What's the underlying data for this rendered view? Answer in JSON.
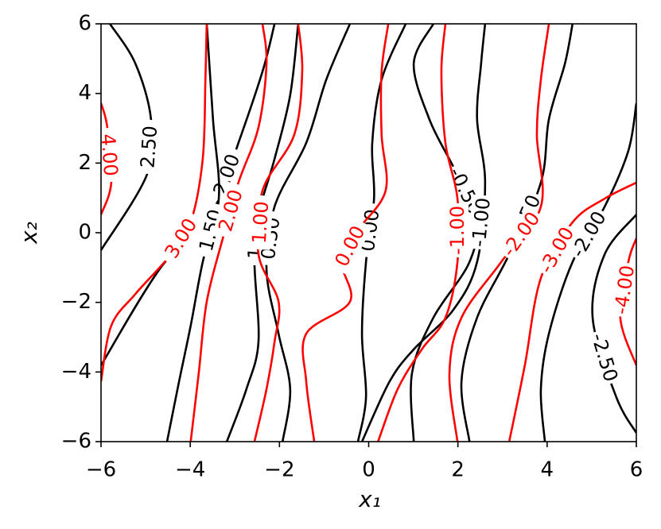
{
  "chart_data": {
    "type": "contour",
    "xlabel": "x₁",
    "ylabel": "x₂",
    "xlim": [
      -6,
      6
    ],
    "ylim": [
      -6,
      6
    ],
    "xticks": [
      {
        "value": -6,
        "label": "−6"
      },
      {
        "value": -4,
        "label": "−4"
      },
      {
        "value": -2,
        "label": "−2"
      },
      0,
      2,
      4,
      6
    ],
    "yticks": [
      {
        "value": -6,
        "label": "−6"
      },
      {
        "value": -4,
        "label": "−4"
      },
      {
        "value": -2,
        "label": "−2"
      },
      0,
      2,
      4,
      6
    ],
    "series": [
      {
        "color": "#000000",
        "contours": [
          {
            "level": 2.5,
            "level_label": "2.50",
            "x": [
              -5.8,
              -5.23,
              -4.88,
              -4.97,
              -6.0
            ],
            "y": [
              6,
              4.86,
              3.26,
              1.67,
              -0.5
            ]
          },
          {
            "level": 2.0,
            "level_label": "2.00",
            "x": [
              -6,
              -4.7,
              -3.45,
              -2.92,
              -2.38,
              -2.11
            ],
            "y": [
              -3.81,
              -1.07,
              0.75,
              2.58,
              4.63,
              6
            ]
          },
          {
            "level": 1.5,
            "level_label": "1.50",
            "x": [
              -4.52,
              -4.25,
              -3.99,
              -3.72,
              -3.36,
              -3.49,
              -3.63
            ],
            "y": [
              -6,
              -4.27,
              -2.67,
              -0.84,
              0.98,
              3.26,
              6
            ]
          },
          {
            "level": 1.0,
            "level_label": "1.00",
            "x": [
              -3.18,
              -2.74,
              -2.47,
              -2.56,
              -2.47,
              -2.11,
              -1.76,
              -1.58
            ],
            "y": [
              -6,
              -4.49,
              -3.13,
              -0.84,
              0.52,
              2.12,
              3.95,
              6
            ]
          },
          {
            "level": 0.5,
            "level_label": "0.50",
            "x": [
              -1.93,
              -1.76,
              -2.02,
              -2.29,
              -2.11,
              -1.4,
              -0.95,
              -0.42
            ],
            "y": [
              -6,
              -4.49,
              -2.9,
              -1.07,
              0.75,
              2.58,
              4.4,
              6
            ]
          },
          {
            "level": 0.0,
            "level_label": "0.00",
            "x": [
              -0.24,
              -0.06,
              -0.15,
              -0.06,
              0.12,
              0.08,
              0.29,
              0.83
            ],
            "y": [
              -6,
              -4.72,
              -2.9,
              -0.84,
              0.98,
              2.58,
              4.4,
              6
            ]
          },
          {
            "level": -0.5,
            "level_label": "-0.50",
            "x": [
              1.01,
              0.97,
              1.45,
              2.26,
              2.43,
              1.9,
              1.36,
              1.01,
              1.45
            ],
            "y": [
              -6,
              -4.04,
              -2.44,
              -0.84,
              0.52,
              1.89,
              3.26,
              4.86,
              6
            ]
          },
          {
            "level": -1.0,
            "level_label": "-1.00",
            "x": [
              -0.15,
              0.47,
              1.01,
              1.9,
              2.43,
              2.61,
              2.43,
              2.52,
              2.61
            ],
            "y": [
              -6,
              -4.27,
              -3.35,
              -2.21,
              -0.84,
              1.44,
              3.26,
              4.86,
              6
            ]
          },
          {
            "level": -1.5,
            "level_label": "-1.50",
            "x": [
              2.26,
              2.08,
              2.43,
              3.15,
              3.86,
              4.04,
              4.4,
              4.57
            ],
            "y": [
              -6,
              -4.27,
              -2.44,
              -0.62,
              1.44,
              3.26,
              4.86,
              6
            ]
          },
          {
            "level": -2.0,
            "level_label": "-2.00",
            "x": [
              3.95,
              3.86,
              4.04,
              4.57,
              5.29,
              5.82,
              6.0
            ],
            "y": [
              -6,
              -4.49,
              -2.9,
              -0.84,
              0.75,
              2.35,
              3.72
            ]
          },
          {
            "level": -2.5,
            "level_label": "-2.50",
            "x": [
              6,
              5.29,
              5.02,
              5.55,
              6
            ],
            "y": [
              0.52,
              -0.62,
              -2.44,
              -4.72,
              -5.75
            ]
          }
        ]
      },
      {
        "color": "#ff0000",
        "contours": [
          {
            "level": 4.0,
            "level_label": "4.00",
            "x": [
              -6,
              -5.77,
              -5.86,
              -6
            ],
            "y": [
              0.52,
              1.44,
              3.03,
              3.72
            ]
          },
          {
            "level": 3.0,
            "level_label": "3.00",
            "x": [
              -6,
              -5.77,
              -5.23,
              -4.43,
              -3.99,
              -3.72,
              -3.66,
              -3.63
            ],
            "y": [
              -4.27,
              -2.67,
              -1.76,
              -0.62,
              0.3,
              2.12,
              4.4,
              6
            ]
          },
          {
            "level": 2.0,
            "level_label": "2.00",
            "x": [
              -3.99,
              -3.81,
              -3.63,
              -3.27,
              -2.92,
              -2.47,
              -2.29,
              -2.38
            ],
            "y": [
              -6,
              -4.04,
              -1.98,
              -0.16,
              1.44,
              3.03,
              4.86,
              6
            ]
          },
          {
            "level": 1.0,
            "level_label": "1.00",
            "x": [
              -2.56,
              -2.29,
              -2.11,
              -2.02,
              -2.47,
              -2.38,
              -1.67,
              -1.49,
              -1.58
            ],
            "y": [
              -6,
              -4.49,
              -3.13,
              -1.98,
              -0.62,
              1.21,
              2.81,
              4.63,
              6
            ]
          },
          {
            "level": 0.0,
            "level_label": "0.00",
            "x": [
              -1.22,
              -1.4,
              -1.4,
              -0.42,
              -0.6,
              -0.24,
              0.38,
              0.29,
              0.29,
              0.44
            ],
            "y": [
              -6,
              -4.27,
              -2.9,
              -1.98,
              -0.84,
              0.07,
              1.21,
              2.81,
              4.63,
              6
            ]
          },
          {
            "level": -1.0,
            "level_label": "-1.00",
            "x": [
              0.21,
              0.65,
              1.19,
              1.72,
              1.99,
              1.99,
              1.72,
              1.63,
              1.72
            ],
            "y": [
              -6,
              -4.49,
              -3.35,
              -2.44,
              -0.84,
              0.98,
              2.58,
              4.63,
              6
            ]
          },
          {
            "level": -2.0,
            "level_label": "-2.00",
            "x": [
              1.99,
              1.81,
              2.08,
              2.97,
              3.86,
              3.77,
              3.86,
              4.04
            ],
            "y": [
              -6,
              -4.04,
              -2.44,
              -0.84,
              0.75,
              2.81,
              4.4,
              6
            ]
          },
          {
            "level": -3.0,
            "level_label": "-3.00",
            "x": [
              3.15,
              3.5,
              3.86,
              4.57,
              5.29,
              6.0
            ],
            "y": [
              -6,
              -3.81,
              -1.3,
              0.3,
              0.98,
              1.44
            ]
          },
          {
            "level": -4.0,
            "level_label": "-4.00",
            "x": [
              6,
              5.82,
              5.64,
              6
            ],
            "y": [
              -0.16,
              -0.84,
              -2.44,
              -3.81
            ]
          }
        ]
      }
    ]
  }
}
